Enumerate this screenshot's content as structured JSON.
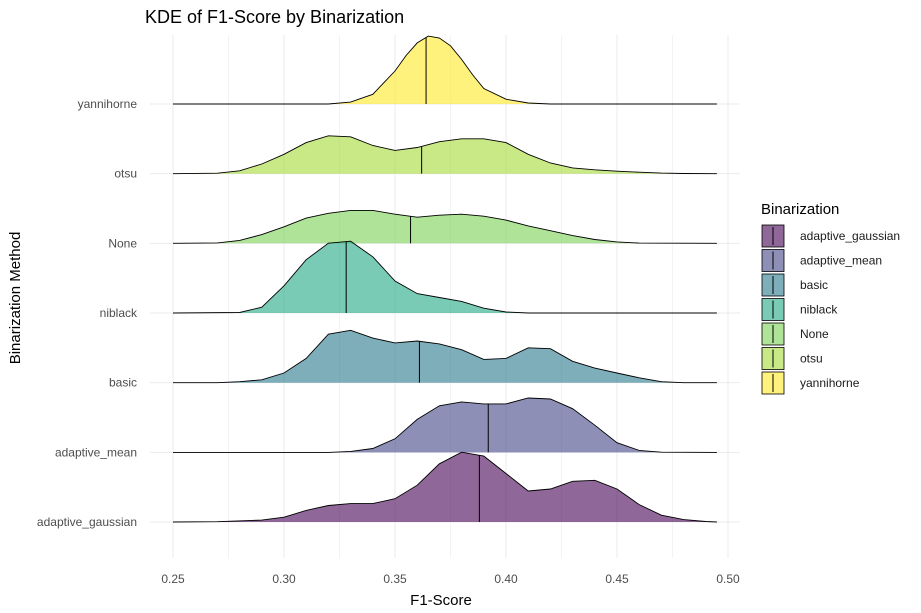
{
  "chart_data": {
    "type": "ridgeline-density",
    "title": "KDE of F1-Score by Binarization",
    "xlabel": "F1-Score",
    "ylabel": "Binarization Method",
    "xlim": [
      0.25,
      0.495
    ],
    "x_ticks": [
      0.25,
      0.3,
      0.35,
      0.4,
      0.45,
      0.5
    ],
    "x_tick_labels": [
      "0.25",
      "0.30",
      "0.35",
      "0.40",
      "0.45",
      "0.50"
    ],
    "grid": true,
    "legend": {
      "title": "Binarization",
      "position": "right"
    },
    "series": [
      {
        "name": "adaptive_gaussian",
        "color": "#440154",
        "median": 0.388,
        "density": [
          [
            0.25,
            0
          ],
          [
            0.27,
            0.003
          ],
          [
            0.29,
            0.02
          ],
          [
            0.3,
            0.05
          ],
          [
            0.31,
            0.12
          ],
          [
            0.32,
            0.17
          ],
          [
            0.33,
            0.19
          ],
          [
            0.34,
            0.19
          ],
          [
            0.35,
            0.24
          ],
          [
            0.36,
            0.38
          ],
          [
            0.37,
            0.6
          ],
          [
            0.38,
            0.72
          ],
          [
            0.39,
            0.68
          ],
          [
            0.4,
            0.5
          ],
          [
            0.41,
            0.32
          ],
          [
            0.42,
            0.34
          ],
          [
            0.43,
            0.42
          ],
          [
            0.44,
            0.43
          ],
          [
            0.45,
            0.34
          ],
          [
            0.46,
            0.18
          ],
          [
            0.47,
            0.07
          ],
          [
            0.48,
            0.025
          ],
          [
            0.49,
            0.005
          ],
          [
            0.495,
            0
          ]
        ]
      },
      {
        "name": "adaptive_mean",
        "color": "#414487",
        "median": 0.392,
        "density": [
          [
            0.25,
            0
          ],
          [
            0.32,
            0
          ],
          [
            0.33,
            0.01
          ],
          [
            0.34,
            0.04
          ],
          [
            0.35,
            0.14
          ],
          [
            0.36,
            0.34
          ],
          [
            0.37,
            0.48
          ],
          [
            0.38,
            0.52
          ],
          [
            0.39,
            0.5
          ],
          [
            0.4,
            0.5
          ],
          [
            0.41,
            0.56
          ],
          [
            0.42,
            0.55
          ],
          [
            0.43,
            0.45
          ],
          [
            0.44,
            0.28
          ],
          [
            0.45,
            0.1
          ],
          [
            0.46,
            0.02
          ],
          [
            0.47,
            0.002
          ],
          [
            0.495,
            0
          ]
        ]
      },
      {
        "name": "basic",
        "color": "#2a788e",
        "median": 0.361,
        "density": [
          [
            0.25,
            0
          ],
          [
            0.27,
            0
          ],
          [
            0.28,
            0.01
          ],
          [
            0.29,
            0.03
          ],
          [
            0.3,
            0.1
          ],
          [
            0.31,
            0.25
          ],
          [
            0.32,
            0.5
          ],
          [
            0.33,
            0.54
          ],
          [
            0.34,
            0.46
          ],
          [
            0.35,
            0.41
          ],
          [
            0.36,
            0.43
          ],
          [
            0.37,
            0.4
          ],
          [
            0.38,
            0.34
          ],
          [
            0.39,
            0.24
          ],
          [
            0.4,
            0.25
          ],
          [
            0.41,
            0.36
          ],
          [
            0.42,
            0.35
          ],
          [
            0.43,
            0.22
          ],
          [
            0.44,
            0.15
          ],
          [
            0.45,
            0.1
          ],
          [
            0.46,
            0.05
          ],
          [
            0.47,
            0.01
          ],
          [
            0.48,
            0
          ],
          [
            0.495,
            0
          ]
        ]
      },
      {
        "name": "niblack",
        "color": "#22a884",
        "median": 0.328,
        "density": [
          [
            0.25,
            0
          ],
          [
            0.28,
            0.005
          ],
          [
            0.29,
            0.06
          ],
          [
            0.3,
            0.28
          ],
          [
            0.31,
            0.55
          ],
          [
            0.32,
            0.72
          ],
          [
            0.33,
            0.74
          ],
          [
            0.34,
            0.58
          ],
          [
            0.35,
            0.33
          ],
          [
            0.36,
            0.2
          ],
          [
            0.37,
            0.16
          ],
          [
            0.38,
            0.12
          ],
          [
            0.39,
            0.05
          ],
          [
            0.4,
            0.01
          ],
          [
            0.41,
            0
          ],
          [
            0.495,
            0
          ]
        ]
      },
      {
        "name": "None",
        "color": "#7ad151",
        "median": 0.357,
        "density": [
          [
            0.25,
            0
          ],
          [
            0.27,
            0.005
          ],
          [
            0.28,
            0.03
          ],
          [
            0.29,
            0.09
          ],
          [
            0.3,
            0.17
          ],
          [
            0.31,
            0.26
          ],
          [
            0.32,
            0.31
          ],
          [
            0.33,
            0.34
          ],
          [
            0.34,
            0.34
          ],
          [
            0.35,
            0.3
          ],
          [
            0.36,
            0.27
          ],
          [
            0.37,
            0.29
          ],
          [
            0.38,
            0.3
          ],
          [
            0.39,
            0.28
          ],
          [
            0.4,
            0.24
          ],
          [
            0.41,
            0.18
          ],
          [
            0.42,
            0.13
          ],
          [
            0.43,
            0.08
          ],
          [
            0.44,
            0.04
          ],
          [
            0.45,
            0.015
          ],
          [
            0.46,
            0.002
          ],
          [
            0.495,
            0
          ]
        ]
      },
      {
        "name": "otsu",
        "color": "#a5db36",
        "median": 0.362,
        "density": [
          [
            0.25,
            0
          ],
          [
            0.27,
            0.005
          ],
          [
            0.28,
            0.03
          ],
          [
            0.29,
            0.1
          ],
          [
            0.3,
            0.2
          ],
          [
            0.31,
            0.32
          ],
          [
            0.32,
            0.39
          ],
          [
            0.33,
            0.38
          ],
          [
            0.34,
            0.29
          ],
          [
            0.35,
            0.24
          ],
          [
            0.36,
            0.27
          ],
          [
            0.37,
            0.33
          ],
          [
            0.38,
            0.36
          ],
          [
            0.39,
            0.36
          ],
          [
            0.4,
            0.32
          ],
          [
            0.41,
            0.2
          ],
          [
            0.42,
            0.11
          ],
          [
            0.43,
            0.06
          ],
          [
            0.44,
            0.04
          ],
          [
            0.45,
            0.025
          ],
          [
            0.46,
            0.015
          ],
          [
            0.47,
            0.006
          ],
          [
            0.48,
            0.002
          ],
          [
            0.495,
            0
          ]
        ]
      },
      {
        "name": "yannihorne",
        "color": "#fde725",
        "median": 0.364,
        "density": [
          [
            0.25,
            0
          ],
          [
            0.32,
            0
          ],
          [
            0.33,
            0.02
          ],
          [
            0.34,
            0.1
          ],
          [
            0.35,
            0.34
          ],
          [
            0.355,
            0.5
          ],
          [
            0.36,
            0.63
          ],
          [
            0.365,
            0.7
          ],
          [
            0.37,
            0.68
          ],
          [
            0.375,
            0.6
          ],
          [
            0.38,
            0.46
          ],
          [
            0.385,
            0.3
          ],
          [
            0.39,
            0.16
          ],
          [
            0.4,
            0.05
          ],
          [
            0.41,
            0.01
          ],
          [
            0.42,
            0
          ],
          [
            0.495,
            0
          ]
        ]
      }
    ]
  }
}
